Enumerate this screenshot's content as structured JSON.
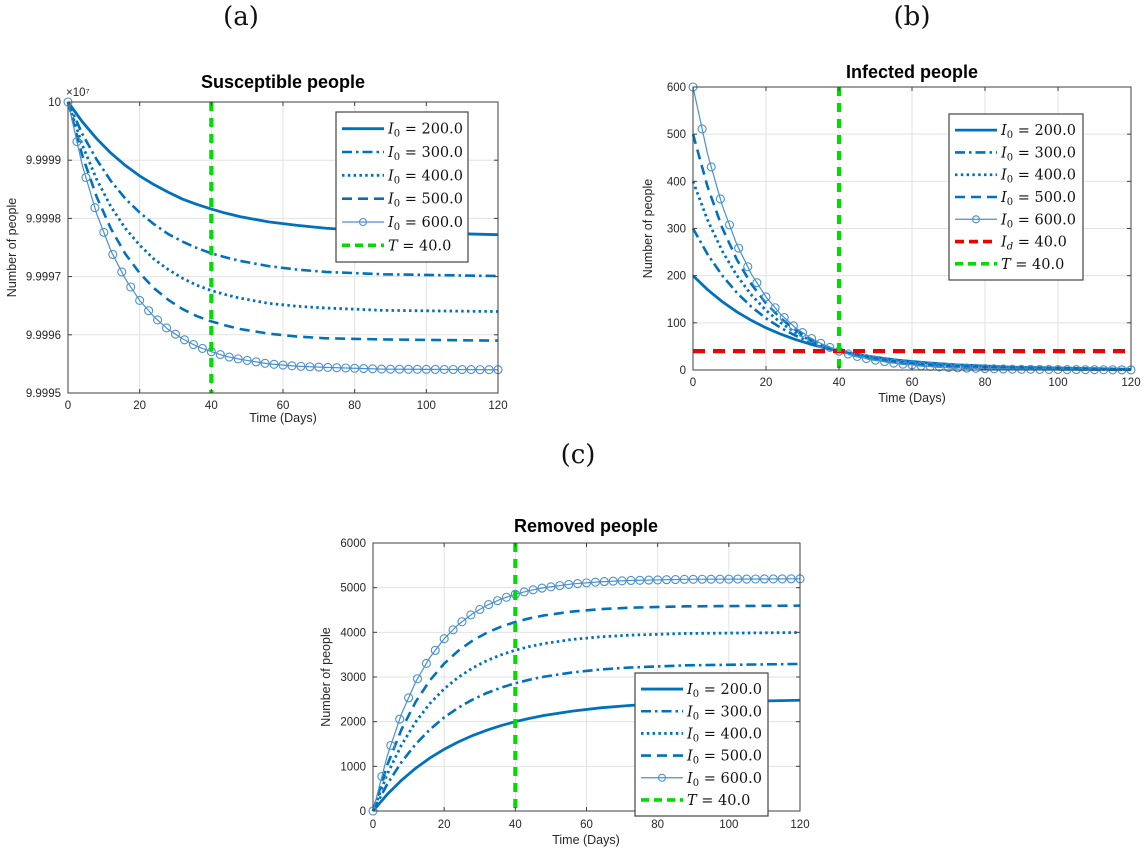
{
  "panel_labels": {
    "a": "(a)",
    "b": "(b)",
    "c": "(c)"
  },
  "colors": {
    "series_blue": "#0072BD",
    "circle_series_blue": "#4a90cf",
    "threshold_green": "#00DB00",
    "detection_red": "#F20000",
    "grid": "#e2e2e2",
    "axis": "#3f3f3f"
  },
  "chart_data": [
    {
      "id": "susceptible",
      "type": "line",
      "title": "Susceptible people",
      "xlabel": "Time (Days)",
      "ylabel": "Number of people",
      "y_exponent": "×10⁷",
      "xlim": [
        0,
        120
      ],
      "ylim": [
        9.9995,
        10
      ],
      "xticks": [
        0,
        20,
        40,
        60,
        80,
        100,
        120
      ],
      "xtick_labels": [
        "0",
        "20",
        "40",
        "60",
        "80",
        "100",
        "120"
      ],
      "yticks": [
        9.9995,
        9.9996,
        9.9997,
        9.9998,
        9.9999,
        10
      ],
      "ytick_labels": [
        "9.9995",
        "9.9996",
        "9.9997",
        "9.9998",
        "9.9999",
        "10"
      ],
      "grid": true,
      "legend_position": "top-right",
      "x": [
        0,
        4,
        8,
        12,
        16,
        20,
        24,
        28,
        32,
        36,
        40,
        44,
        48,
        56,
        64,
        72,
        88,
        120
      ],
      "series": [
        {
          "sym": "I",
          "sub": "0",
          "value": "200.0",
          "style": "solid",
          "color": "#0072BD",
          "y": [
            10,
            9.999966,
            9.999937,
            9.999912,
            9.999891,
            9.999873,
            9.999858,
            9.999845,
            9.999833,
            9.999824,
            9.999816,
            9.999809,
            9.999803,
            9.999794,
            9.999788,
            9.999783,
            9.999777,
            9.999772
          ]
        },
        {
          "sym": "I",
          "sub": "0",
          "value": "300.0",
          "style": "dashdot",
          "color": "#0072BD",
          "y": [
            10,
            9.999945,
            9.999901,
            9.999864,
            9.999834,
            9.99981,
            9.99979,
            9.999773,
            9.99976,
            9.999749,
            9.99974,
            9.999733,
            9.999727,
            9.999718,
            9.999712,
            9.999708,
            9.999704,
            9.999701
          ]
        },
        {
          "sym": "I",
          "sub": "0",
          "value": "400.0",
          "style": "dotted",
          "color": "#0072BD",
          "y": [
            10,
            9.999926,
            9.999867,
            9.99982,
            9.999783,
            9.999754,
            9.99973,
            9.999712,
            9.999697,
            9.999685,
            9.999676,
            9.999669,
            9.999663,
            9.999654,
            9.999649,
            9.999646,
            9.999642,
            9.99964
          ]
        },
        {
          "sym": "I",
          "sub": "0",
          "value": "500.0",
          "style": "dashed",
          "color": "#0072BD",
          "y": [
            10,
            9.999908,
            9.999837,
            9.999782,
            9.999739,
            9.999706,
            9.99968,
            9.99966,
            9.999644,
            9.999632,
            9.999623,
            9.999616,
            9.99961,
            9.999602,
            9.999597,
            9.999594,
            9.999592,
            9.99959
          ]
        },
        {
          "sym": "I",
          "sub": "0",
          "value": "600.0",
          "style": "circleline",
          "color": "#4a90cf",
          "marker": "circle",
          "marker_step": 2.5,
          "y": [
            10,
            9.999891,
            9.999808,
            9.999744,
            9.999696,
            9.999659,
            9.999631,
            9.999609,
            9.999593,
            9.99958,
            9.999571,
            9.999563,
            9.999558,
            9.99955,
            9.999546,
            9.999544,
            9.999541,
            9.99954
          ]
        }
      ],
      "vline": {
        "sym": "T",
        "sub": "",
        "value": "40.0",
        "x": 40,
        "style": "gdash",
        "color": "#00DB00"
      }
    },
    {
      "id": "infected",
      "type": "line",
      "title": "Infected people",
      "xlabel": "Time (Days)",
      "ylabel": "Number of people",
      "xlim": [
        0,
        120
      ],
      "ylim": [
        0,
        600
      ],
      "xticks": [
        0,
        20,
        40,
        60,
        80,
        100,
        120
      ],
      "xtick_labels": [
        "0",
        "20",
        "40",
        "60",
        "80",
        "100",
        "120"
      ],
      "yticks": [
        0,
        100,
        200,
        300,
        400,
        500,
        600
      ],
      "ytick_labels": [
        "0",
        "100",
        "200",
        "300",
        "400",
        "500",
        "600"
      ],
      "grid": true,
      "legend_position": "top-right",
      "x": [
        0,
        4,
        8,
        12,
        16,
        20,
        24,
        28,
        32,
        36,
        40,
        44,
        48,
        56,
        64,
        72,
        88,
        120
      ],
      "series": [
        {
          "sym": "I",
          "sub": "0",
          "value": "200.0",
          "style": "solid",
          "color": "#0072BD",
          "y": [
            200,
            170.3,
            145.0,
            123.4,
            105.1,
            89.4,
            76.1,
            64.8,
            55.2,
            47.0,
            40,
            34.1,
            29.0,
            21.0,
            15.2,
            11.0,
            5.8,
            1.6
          ]
        },
        {
          "sym": "I",
          "sub": "0",
          "value": "300.0",
          "style": "dashdot",
          "color": "#0072BD",
          "y": [
            300,
            245.3,
            200.5,
            163.9,
            134.0,
            109.6,
            89.6,
            73.2,
            59.9,
            48.9,
            40,
            32.7,
            26.7,
            17.9,
            11.9,
            8.0,
            3.6,
            0.7
          ]
        },
        {
          "sym": "I",
          "sub": "0",
          "value": "400.0",
          "style": "dotted",
          "color": "#0072BD",
          "y": [
            400,
            317.7,
            252.4,
            200.5,
            159.2,
            126.5,
            100.5,
            79.8,
            63.4,
            50.4,
            40,
            31.8,
            25.2,
            15.9,
            10.1,
            6.3,
            2.5,
            0.4
          ]
        },
        {
          "sym": "I",
          "sub": "0",
          "value": "500.0",
          "style": "dashed",
          "color": "#0072BD",
          "y": [
            500,
            388.4,
            301.6,
            234.3,
            182.0,
            141.3,
            109.8,
            85.3,
            66.2,
            51.4,
            40,
            31.1,
            24.1,
            14.6,
            8.8,
            5.3,
            1.9,
            0.3
          ]
        },
        {
          "sym": "I",
          "sub": "0",
          "value": "600.0",
          "style": "circleline",
          "color": "#4a90cf",
          "marker": "circle",
          "marker_step": 2.5,
          "y": [
            600,
            457.7,
            349.1,
            266.3,
            203.1,
            154.9,
            118.2,
            90.1,
            68.8,
            52.5,
            40,
            30.5,
            23.3,
            13.5,
            7.9,
            4.6,
            1.6,
            0.2
          ]
        }
      ],
      "hline": {
        "sym": "I",
        "sub": "d",
        "value": "40.0",
        "y": 40,
        "style": "rdash",
        "color": "#F20000"
      },
      "vline": {
        "sym": "T",
        "sub": "",
        "value": "40.0",
        "x": 40,
        "style": "gdash",
        "color": "#00DB00"
      }
    },
    {
      "id": "removed",
      "type": "line",
      "title": "Removed people",
      "xlabel": "Time (Days)",
      "ylabel": "Number of people",
      "xlim": [
        0,
        120
      ],
      "ylim": [
        0,
        6000
      ],
      "xticks": [
        0,
        20,
        40,
        60,
        80,
        100,
        120
      ],
      "xtick_labels": [
        "0",
        "20",
        "40",
        "60",
        "80",
        "100",
        "120"
      ],
      "yticks": [
        0,
        1000,
        2000,
        3000,
        4000,
        5000,
        6000
      ],
      "ytick_labels": [
        "0",
        "1000",
        "2000",
        "3000",
        "4000",
        "5000",
        "6000"
      ],
      "grid": true,
      "legend_position": "bottom-right",
      "x": [
        0,
        4,
        8,
        12,
        16,
        20,
        24,
        28,
        32,
        36,
        40,
        44,
        48,
        56,
        64,
        72,
        88,
        120
      ],
      "series": [
        {
          "sym": "I",
          "sub": "0",
          "value": "200.0",
          "style": "solid",
          "color": "#0072BD",
          "y": [
            0,
            372,
            688,
            958,
            1187,
            1382,
            1548,
            1690,
            1810,
            1913,
            2000,
            2074,
            2138,
            2237,
            2310,
            2362,
            2428,
            2480
          ]
        },
        {
          "sym": "I",
          "sub": "0",
          "value": "300.0",
          "style": "dashdot",
          "color": "#0072BD",
          "y": [
            0,
            602,
            1094,
            1497,
            1826,
            2095,
            2315,
            2495,
            2642,
            2762,
            2860,
            2940,
            3006,
            3103,
            3169,
            3212,
            3261,
            3292
          ]
        },
        {
          "sym": "I",
          "sub": "0",
          "value": "400.0",
          "style": "dotted",
          "color": "#0072BD",
          "y": [
            0,
            823,
            1476,
            1995,
            2408,
            2735,
            2995,
            3202,
            3366,
            3496,
            3600,
            3682,
            3748,
            3841,
            3900,
            3937,
            3975,
            3996
          ]
        },
        {
          "sym": "I",
          "sub": "0",
          "value": "500.0",
          "style": "dashed",
          "color": "#0072BD",
          "y": [
            0,
            1027,
            1825,
            2445,
            2926,
            3300,
            3590,
            3816,
            3991,
            4127,
            4232,
            4314,
            4378,
            4466,
            4519,
            4551,
            4582,
            4598
          ]
        },
        {
          "sym": "I",
          "sub": "0",
          "value": "600.0",
          "style": "circleline",
          "color": "#4a90cf",
          "marker": "circle",
          "marker_step": 2.5,
          "y": [
            0,
            1234,
            2174,
            2892,
            3440,
            3857,
            4176,
            4419,
            4604,
            4745,
            4853,
            4936,
            4998,
            5083,
            5132,
            5160,
            5187,
            5198
          ]
        }
      ],
      "vline": {
        "sym": "T",
        "sub": "",
        "value": "40.0",
        "x": 40,
        "style": "gdash",
        "color": "#00DB00"
      }
    }
  ]
}
